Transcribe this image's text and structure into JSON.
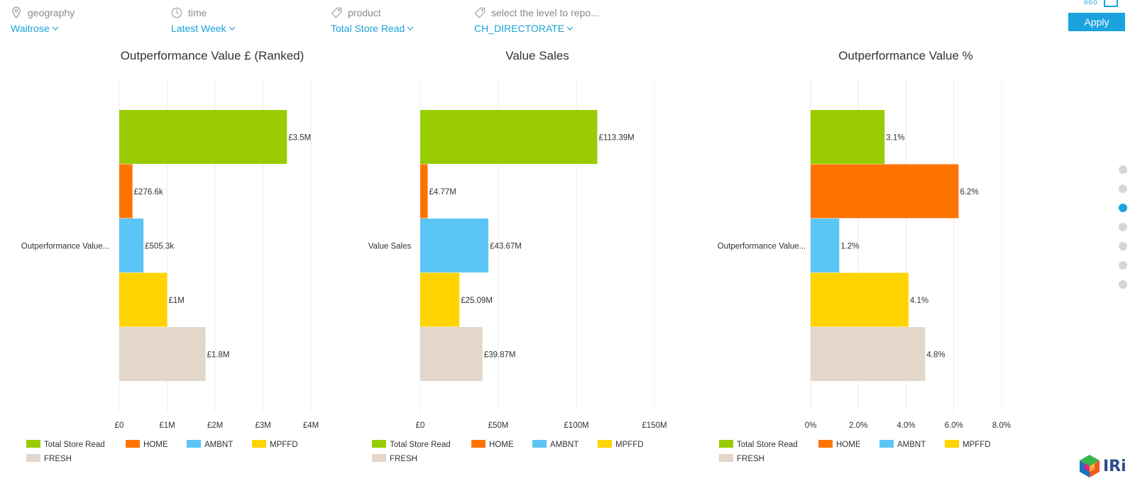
{
  "filters": [
    {
      "label": "geography",
      "value": "Waitrose",
      "icon": "location-pin-icon"
    },
    {
      "label": "time",
      "value": "Latest Week",
      "icon": "clock-icon"
    },
    {
      "label": "product",
      "value": "Total Store Read",
      "icon": "tag-icon"
    },
    {
      "label": "select the level to repo...",
      "value": "CH_DIRECTORATE",
      "icon": "tag-icon"
    }
  ],
  "apply_label": "Apply",
  "top_icon_text": "ooo",
  "pager": {
    "count": 7,
    "active": 2
  },
  "logo_text": "IRi",
  "colors": {
    "Total Store Read": "#99cc00",
    "HOME": "#ff7300",
    "AMBNT": "#5bc5f5",
    "MPFFD": "#ffd300",
    "FRESH": "#e3d6ca",
    "text": "#333333",
    "grid": "#ececec"
  },
  "chart_data": [
    {
      "type": "bar",
      "orientation": "horizontal",
      "title": "Outperformance Value £ (Ranked)",
      "category_label": "Outperformance Value...",
      "series": [
        {
          "name": "Total Store Read",
          "values": [
            3.5
          ],
          "label": "£3.5M"
        },
        {
          "name": "HOME",
          "values": [
            0.2766
          ],
          "label": "£276.6k"
        },
        {
          "name": "AMBNT",
          "values": [
            0.5053
          ],
          "label": "£505.3k"
        },
        {
          "name": "MPFFD",
          "values": [
            1.0
          ],
          "label": "£1M"
        },
        {
          "name": "FRESH",
          "values": [
            1.8
          ],
          "label": "£1.8M"
        }
      ],
      "xlim": [
        0,
        4
      ],
      "ticks": [
        0,
        1,
        2,
        3,
        4
      ],
      "tick_labels": [
        "£0",
        "£1M",
        "£2M",
        "£3M",
        "£4M"
      ],
      "grid": true,
      "legend": "bottom"
    },
    {
      "type": "bar",
      "orientation": "horizontal",
      "title": "Value Sales",
      "category_label": "Value Sales",
      "series": [
        {
          "name": "Total Store Read",
          "values": [
            113.39
          ],
          "label": "£113.39M"
        },
        {
          "name": "HOME",
          "values": [
            4.77
          ],
          "label": "£4.77M"
        },
        {
          "name": "AMBNT",
          "values": [
            43.67
          ],
          "label": "£43.67M"
        },
        {
          "name": "MPFFD",
          "values": [
            25.09
          ],
          "label": "£25.09M"
        },
        {
          "name": "FRESH",
          "values": [
            39.87
          ],
          "label": "£39.87M"
        }
      ],
      "xlim": [
        0,
        150
      ],
      "ticks": [
        0,
        50,
        100,
        150
      ],
      "tick_labels": [
        "£0",
        "£50M",
        "£100M",
        "£150M"
      ],
      "grid": true,
      "legend": "bottom"
    },
    {
      "type": "bar",
      "orientation": "horizontal",
      "title": "Outperformance Value %",
      "category_label": "Outperformance Value...",
      "series": [
        {
          "name": "Total Store Read",
          "values": [
            3.1
          ],
          "label": "3.1%"
        },
        {
          "name": "HOME",
          "values": [
            6.2
          ],
          "label": "6.2%"
        },
        {
          "name": "AMBNT",
          "values": [
            1.2
          ],
          "label": "1.2%"
        },
        {
          "name": "MPFFD",
          "values": [
            4.1
          ],
          "label": "4.1%"
        },
        {
          "name": "FRESH",
          "values": [
            4.8
          ],
          "label": "4.8%"
        }
      ],
      "xlim": [
        0,
        8
      ],
      "ticks": [
        0,
        2,
        4,
        6,
        8
      ],
      "tick_labels": [
        "0%",
        "2.0%",
        "4.0%",
        "6.0%",
        "8.0%"
      ],
      "grid": true,
      "legend": "bottom"
    }
  ]
}
